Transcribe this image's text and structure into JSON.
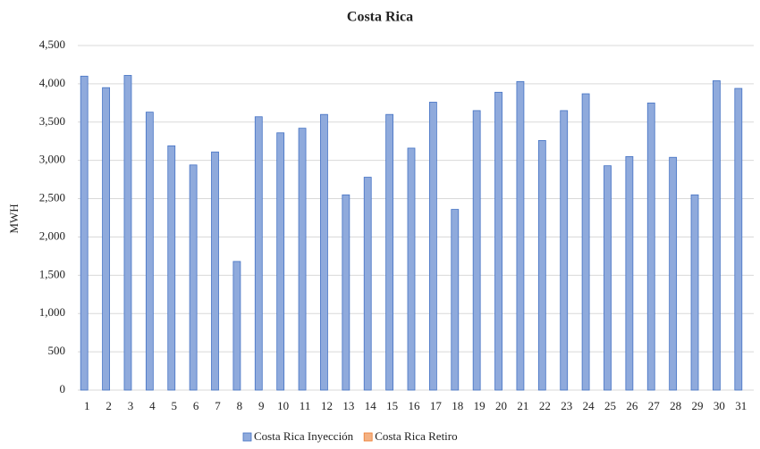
{
  "chart_data": {
    "type": "bar",
    "title": "Costa Rica",
    "y_label": "MWH",
    "categories": [
      "1",
      "2",
      "3",
      "4",
      "5",
      "6",
      "7",
      "8",
      "9",
      "10",
      "11",
      "12",
      "13",
      "14",
      "15",
      "16",
      "17",
      "18",
      "19",
      "20",
      "21",
      "22",
      "23",
      "24",
      "25",
      "26",
      "27",
      "28",
      "29",
      "30",
      "31"
    ],
    "series": [
      {
        "name": "Costa Rica Inyección",
        "color": "#8faadc",
        "values": [
          4100,
          3950,
          4110,
          3630,
          3190,
          2940,
          3110,
          1680,
          3570,
          3360,
          3420,
          3600,
          2550,
          2780,
          3600,
          3160,
          3760,
          2360,
          3650,
          3890,
          4030,
          3260,
          3650,
          3870,
          2930,
          3050,
          3750,
          3040,
          2550,
          4040,
          3940
        ]
      },
      {
        "name": "Costa Rica Retiro",
        "color": "#f4b183",
        "values": [
          0,
          0,
          0,
          0,
          0,
          0,
          0,
          0,
          0,
          0,
          0,
          0,
          0,
          0,
          0,
          0,
          0,
          0,
          0,
          0,
          0,
          0,
          0,
          0,
          0,
          0,
          0,
          0,
          0,
          0,
          0
        ]
      }
    ],
    "ylim": [
      0,
      4500
    ],
    "yticks": [
      0,
      500,
      {
        "value": 1000,
        "label": "1,000"
      },
      {
        "value": 1500,
        "label": "1,500"
      },
      {
        "value": 2000,
        "label": "2,000"
      },
      {
        "value": 2500,
        "label": "2,500"
      },
      {
        "value": 3000,
        "label": "3,000"
      },
      {
        "value": 3500,
        "label": "3,500"
      },
      {
        "value": 4000,
        "label": "4,000"
      },
      {
        "value": 4500,
        "label": "4,500"
      }
    ],
    "grid": true,
    "legend": "bottom"
  }
}
